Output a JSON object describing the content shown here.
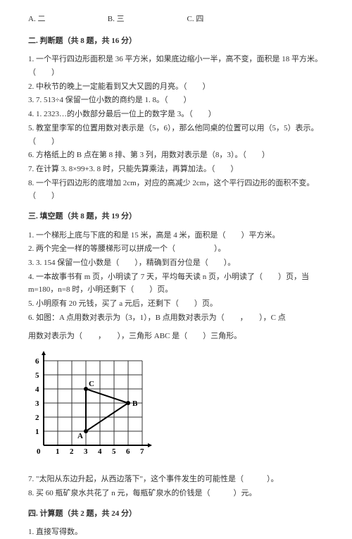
{
  "mc_options": {
    "a": "A. 二",
    "b": "B. 三",
    "c": "C. 四"
  },
  "section2": {
    "title": "二. 判断题（共 8 题，共 16 分）",
    "q1": "1. 一个平行四边形面积是 36 平方米，如果底边缩小一半，高不变，面积是 18 平方米。（　　）",
    "q2": "2. 中秋节的晚上一定能看到又大又圆的月亮。（　　）",
    "q3": "3. 7. 513÷4 保留一位小数的商约是 1. 8。（　　）",
    "q4": "4. 1. 2323…的小数部分最后一位上的数字是 3。（　　）",
    "q5": "5. 教室里李军的位置用数对表示是（5，6），那么他同桌的位置可以用（5，5）表示。（　　）",
    "q6": "6. 方格纸上的 B 点在第 8 排、第 3 列，用数对表示是（8，3）。（　　）",
    "q7": "7. 在计算 3. 8×99+3. 8 时，只能先算乘法，再算加法。（　　）",
    "q8": "8. 一个平行四边形的底增加 2cm，对应的高减少 2cm，这个平行四边形的面积不变。（　　）"
  },
  "section3": {
    "title": "三. 填空题（共 8 题，共 19 分）",
    "q1": "1. 一个梯形上底与下底的和是 15 米，高是 4 米，面积是（　　）平方米。",
    "q2": "2. 两个完全一样的等腰梯形可以拼成一个（　　　　　）。",
    "q3": "3. 3. 154 保留一位小数是（　　），精确到百分位是（　　）。",
    "q4": "4. 一本故事书有 m 页，小明读了 7 天，平均每天读 n 页，小明读了（　　）页，当 m=180，n=8 时，小明还剩下（　　）页。",
    "q5": "5. 小明原有 20 元钱，买了 a 元后，还剩下（　　）页。",
    "q6a": "6. 如图：A 点用数对表示为（3，1），B 点用数对表示为（　　，　　），C 点",
    "q6b": "用数对表示为（　　，　　），三角形 ABC 是（　　）三角形。",
    "q7": "7. \"太阳从东边升起，从西边落下\"，这个事件发生的可能性是（　　　）。",
    "q8": "8. 买 60 瓶矿泉水共花了 n 元，每瓶矿泉水的价钱是（　　　）元。"
  },
  "section4": {
    "title": "四. 计算题（共 2 题，共 24 分）",
    "q1": "1. 直接写得数。"
  },
  "chart": {
    "cell": 20,
    "origin_label": "0",
    "x_labels": [
      "1",
      "2",
      "3",
      "4",
      "5",
      "6",
      "7"
    ],
    "y_labels": [
      "1",
      "2",
      "3",
      "4",
      "5",
      "6"
    ],
    "points": {
      "A": {
        "x": 3,
        "y": 1,
        "label": "A"
      },
      "B": {
        "x": 6,
        "y": 3,
        "label": "B"
      },
      "C": {
        "x": 3,
        "y": 4,
        "label": "C"
      }
    },
    "grid_color": "#333333",
    "axis_color": "#000000",
    "point_color": "#000000",
    "label_color": "#000000",
    "background": "#ffffff",
    "label_fontsize": 11,
    "axis_fontsize": 11
  }
}
